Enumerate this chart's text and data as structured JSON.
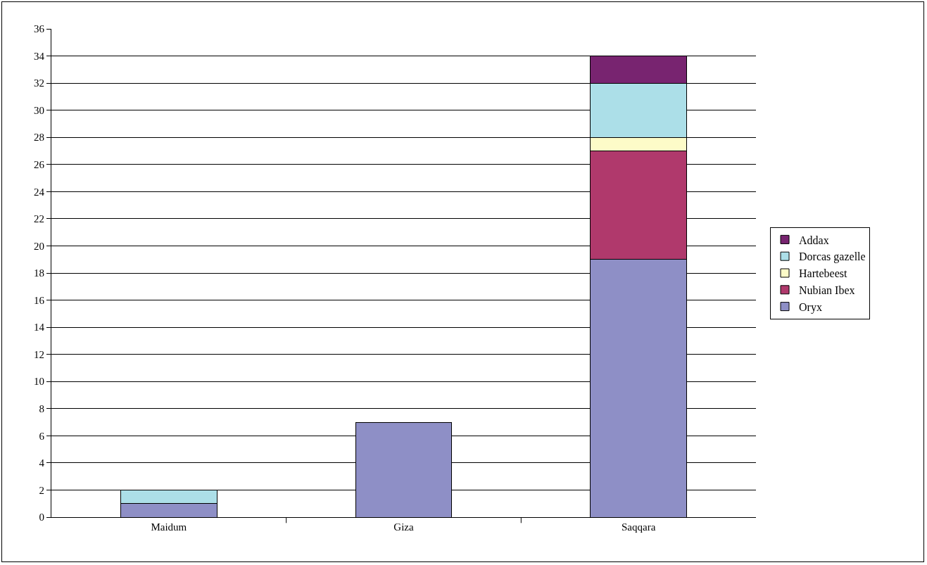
{
  "chart_data": {
    "type": "bar",
    "stacked": true,
    "categories": [
      "Maidum",
      "Giza",
      "Saqqara"
    ],
    "series": [
      {
        "name": "Oryx",
        "color": "#8e8fc6",
        "values": [
          1,
          7,
          19
        ]
      },
      {
        "name": "Nubian Ibex",
        "color": "#b0396c",
        "values": [
          null,
          null,
          8
        ]
      },
      {
        "name": "Hartebeest",
        "color": "#fdfbc8",
        "values": [
          null,
          null,
          1
        ]
      },
      {
        "name": "Dorcas gazelle",
        "color": "#acdfe8",
        "values": [
          1,
          null,
          4
        ]
      },
      {
        "name": "Addax",
        "color": "#782470",
        "values": [
          null,
          null,
          2
        ]
      }
    ],
    "ylim": [
      0,
      36
    ],
    "yticks": [
      0,
      2,
      4,
      6,
      8,
      10,
      12,
      14,
      16,
      18,
      20,
      22,
      24,
      26,
      28,
      30,
      32,
      34,
      36
    ],
    "grid": "y",
    "legend": "right"
  }
}
